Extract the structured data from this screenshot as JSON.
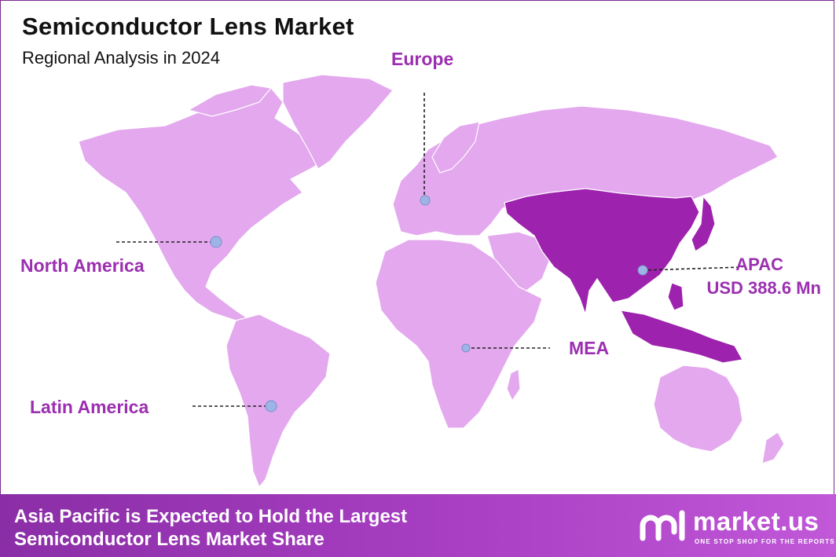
{
  "header": {
    "title": "Semiconductor Lens Market",
    "subtitle": "Regional Analysis in 2024"
  },
  "regions": {
    "europe": "Europe",
    "north_america": "North America",
    "latin_america": "Latin America",
    "mea": "MEA",
    "apac": "APAC",
    "apac_value": "USD 388.6 Mn"
  },
  "highlighted_region": "APAC",
  "colors": {
    "land": "#e3a8ee",
    "highlight": "#9d22ad",
    "label": "#9b2fb0",
    "marker": "#9fb4e6",
    "footer": "#a03cbb"
  },
  "footer": {
    "line1": "Asia Pacific is Expected to Hold the Largest",
    "line2": "Semiconductor Lens Market Share"
  },
  "brand": {
    "name": "market.us",
    "tagline": "ONE STOP SHOP FOR THE REPORTS",
    "logo_icon": "market-us-logo-icon"
  }
}
